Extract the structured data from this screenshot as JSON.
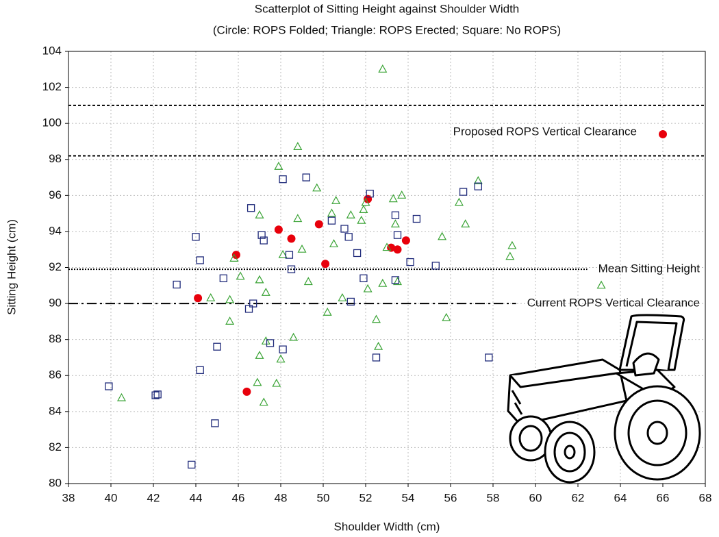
{
  "chart_data": {
    "type": "scatter",
    "title": "Scatterplot of Sitting Height against Shoulder Width",
    "subtitle": "(Circle: ROPS Folded; Triangle: ROPS Erected; Square: No ROPS)",
    "x_label": "Shoulder Width (cm)",
    "y_label": "Sitting Height (cm)",
    "xlim": [
      38,
      68
    ],
    "ylim": [
      80,
      104
    ],
    "xticks": [
      38,
      40,
      42,
      44,
      46,
      48,
      50,
      52,
      54,
      56,
      58,
      60,
      62,
      64,
      66,
      68
    ],
    "yticks": [
      80,
      82,
      84,
      86,
      88,
      90,
      92,
      94,
      96,
      98,
      100,
      102,
      104
    ],
    "grid": true,
    "series": [
      {
        "marker": "circle",
        "color": "#e8000b",
        "x": [
          44.1,
          45.9,
          46.4,
          47.9,
          48.5,
          49.8,
          50.1,
          52.1,
          53.2,
          53.5,
          53.9,
          66.0
        ],
        "values": [
          90.3,
          92.7,
          85.1,
          94.1,
          93.6,
          94.4,
          92.2,
          95.8,
          93.1,
          93.0,
          93.5,
          99.4
        ]
      },
      {
        "marker": "triangle",
        "color": "#3aa335",
        "x": [
          40.5,
          44.7,
          45.6,
          45.6,
          45.8,
          46.1,
          46.9,
          47.0,
          47.0,
          47.0,
          47.2,
          47.3,
          47.3,
          47.9,
          47.8,
          48.0,
          48.1,
          48.6,
          48.8,
          48.8,
          49.0,
          49.3,
          49.7,
          50.2,
          50.4,
          50.6,
          50.5,
          50.9,
          51.3,
          51.8,
          51.9,
          52.0,
          52.1,
          52.5,
          52.6,
          52.8,
          52.8,
          53.0,
          53.3,
          53.4,
          53.7,
          53.5,
          55.6,
          55.8,
          56.4,
          56.7,
          57.3,
          58.8,
          58.9,
          63.1
        ],
        "values": [
          84.75,
          90.3,
          90.2,
          89.0,
          92.5,
          91.5,
          85.6,
          94.9,
          91.3,
          87.1,
          84.5,
          90.6,
          87.9,
          97.6,
          85.55,
          86.9,
          92.7,
          88.1,
          98.7,
          94.7,
          93.0,
          91.2,
          96.4,
          89.5,
          95.0,
          95.7,
          93.3,
          90.3,
          94.9,
          94.6,
          95.2,
          95.6,
          90.8,
          89.1,
          87.6,
          103.0,
          91.1,
          93.1,
          95.8,
          94.4,
          96.0,
          91.2,
          93.7,
          89.2,
          95.6,
          94.4,
          96.8,
          92.6,
          93.2,
          91.0
        ]
      },
      {
        "marker": "square",
        "color": "#1f2a7a",
        "x": [
          39.9,
          42.1,
          42.2,
          43.1,
          43.8,
          44.0,
          44.2,
          44.2,
          44.9,
          45.0,
          45.3,
          46.5,
          46.6,
          46.7,
          47.1,
          47.2,
          47.5,
          48.1,
          48.1,
          48.4,
          48.5,
          49.2,
          50.4,
          51.0,
          51.2,
          51.3,
          51.6,
          51.9,
          52.2,
          52.5,
          53.4,
          53.5,
          53.4,
          54.1,
          54.4,
          55.3,
          56.6,
          57.3,
          57.8
        ],
        "values": [
          85.4,
          84.9,
          84.95,
          91.05,
          81.05,
          93.7,
          92.4,
          86.3,
          83.35,
          87.6,
          91.4,
          89.7,
          95.3,
          90.0,
          93.8,
          93.5,
          87.8,
          87.45,
          96.9,
          92.7,
          91.9,
          97.0,
          94.6,
          94.15,
          93.7,
          90.1,
          92.8,
          91.4,
          96.1,
          87.0,
          94.9,
          93.8,
          91.3,
          92.3,
          94.7,
          92.1,
          96.2,
          96.5,
          87.0
        ]
      }
    ],
    "reference_lines": [
      {
        "y": 101,
        "style": "dashed"
      },
      {
        "y": 98.2,
        "style": "dashed"
      },
      {
        "y": 91.9,
        "style": "dotted",
        "label": "Mean Sitting Height"
      },
      {
        "y": 90,
        "style": "dashdot",
        "label": "Current ROPS Vertical Clearance"
      }
    ],
    "annotation": "Proposed ROPS Vertical Clearance"
  }
}
